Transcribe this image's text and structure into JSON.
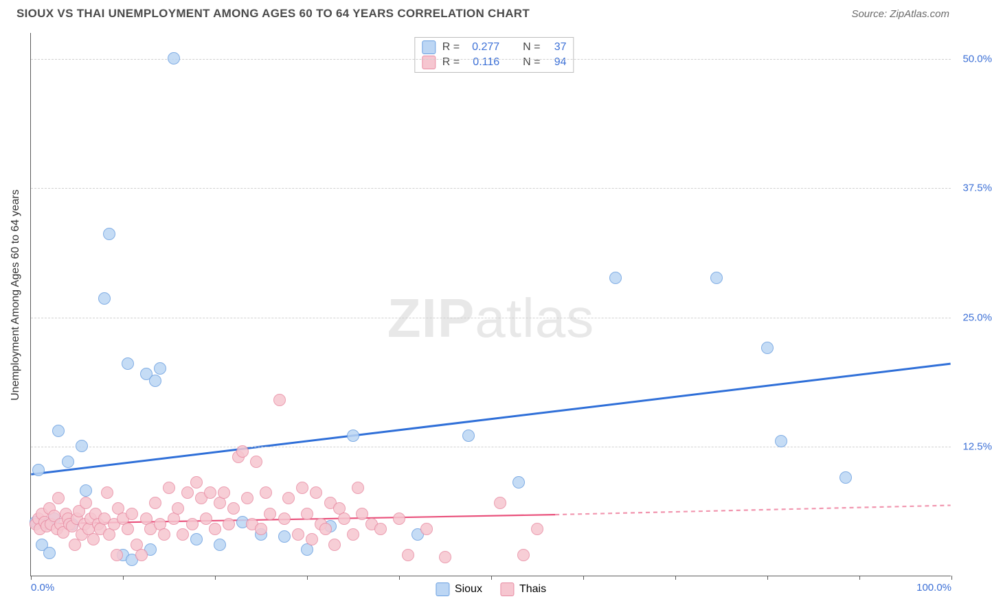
{
  "title": "SIOUX VS THAI UNEMPLOYMENT AMONG AGES 60 TO 64 YEARS CORRELATION CHART",
  "source": "Source: ZipAtlas.com",
  "ylabel": "Unemployment Among Ages 60 to 64 years",
  "watermark": {
    "bold": "ZIP",
    "light": "atlas"
  },
  "chart": {
    "type": "scatter",
    "xlim": [
      0,
      100
    ],
    "ylim": [
      0,
      52.5
    ],
    "x_ticks": [
      0,
      10,
      20,
      30,
      40,
      50,
      60,
      70,
      80,
      90,
      100
    ],
    "x_tick_labels": {
      "0": "0.0%",
      "100": "100.0%"
    },
    "y_gridlines": [
      12.5,
      25.0,
      37.5,
      50.0
    ],
    "y_tick_labels": [
      "12.5%",
      "25.0%",
      "37.5%",
      "50.0%"
    ],
    "background_color": "#ffffff",
    "grid_color": "#cfcfcf",
    "axis_color": "#5a5a5a",
    "point_radius": 9,
    "series": [
      {
        "name": "Sioux",
        "fill": "#bcd6f4",
        "stroke": "#6a9fe0",
        "r_value": "0.277",
        "n_value": "37",
        "trend": {
          "x1": 0,
          "y1": 9.8,
          "x2": 100,
          "y2": 20.5,
          "color": "#2f6fd8",
          "width": 3
        },
        "points": [
          [
            0.5,
            5.2
          ],
          [
            0.8,
            10.2
          ],
          [
            1.2,
            3.0
          ],
          [
            1.5,
            5.0
          ],
          [
            2.0,
            2.2
          ],
          [
            2.5,
            5.5
          ],
          [
            3.0,
            14.0
          ],
          [
            4.0,
            11.0
          ],
          [
            4.5,
            5.0
          ],
          [
            5.5,
            12.5
          ],
          [
            6.0,
            8.2
          ],
          [
            8.0,
            26.8
          ],
          [
            8.5,
            33.0
          ],
          [
            10.0,
            2.0
          ],
          [
            10.5,
            20.5
          ],
          [
            11.0,
            1.5
          ],
          [
            12.5,
            19.5
          ],
          [
            13.0,
            2.5
          ],
          [
            13.5,
            18.8
          ],
          [
            14.0,
            20.0
          ],
          [
            15.5,
            50.0
          ],
          [
            18.0,
            3.5
          ],
          [
            20.5,
            3.0
          ],
          [
            23.0,
            5.2
          ],
          [
            25.0,
            4.0
          ],
          [
            27.5,
            3.8
          ],
          [
            30.0,
            2.5
          ],
          [
            32.5,
            4.8
          ],
          [
            35.0,
            13.5
          ],
          [
            42.0,
            4.0
          ],
          [
            47.5,
            13.5
          ],
          [
            53.0,
            9.0
          ],
          [
            63.5,
            28.8
          ],
          [
            74.5,
            28.8
          ],
          [
            80.0,
            22.0
          ],
          [
            81.5,
            13.0
          ],
          [
            88.5,
            9.5
          ]
        ]
      },
      {
        "name": "Thais",
        "fill": "#f6c6d0",
        "stroke": "#e88ca3",
        "r_value": "0.116",
        "n_value": "94",
        "trend": {
          "x1": 0,
          "y1": 5.0,
          "x2": 57,
          "y2": 5.9,
          "color": "#e94f7a",
          "width": 2.2,
          "dash_x2": 100,
          "dash_y2": 6.8
        },
        "points": [
          [
            0.5,
            5.0
          ],
          [
            0.8,
            5.5
          ],
          [
            1.0,
            4.5
          ],
          [
            1.2,
            6.0
          ],
          [
            1.5,
            5.2
          ],
          [
            1.7,
            4.8
          ],
          [
            2.0,
            6.5
          ],
          [
            2.2,
            5.0
          ],
          [
            2.5,
            5.8
          ],
          [
            2.8,
            4.5
          ],
          [
            3.0,
            7.5
          ],
          [
            3.2,
            5.0
          ],
          [
            3.5,
            4.2
          ],
          [
            3.8,
            6.0
          ],
          [
            4.0,
            5.5
          ],
          [
            4.2,
            5.0
          ],
          [
            4.5,
            4.8
          ],
          [
            4.8,
            3.0
          ],
          [
            5.0,
            5.5
          ],
          [
            5.2,
            6.2
          ],
          [
            5.5,
            4.0
          ],
          [
            5.8,
            5.0
          ],
          [
            6.0,
            7.0
          ],
          [
            6.3,
            4.5
          ],
          [
            6.5,
            5.5
          ],
          [
            6.8,
            3.5
          ],
          [
            7.0,
            6.0
          ],
          [
            7.3,
            5.0
          ],
          [
            7.5,
            4.5
          ],
          [
            8.0,
            5.5
          ],
          [
            8.3,
            8.0
          ],
          [
            8.5,
            4.0
          ],
          [
            9.0,
            5.0
          ],
          [
            9.3,
            2.0
          ],
          [
            9.5,
            6.5
          ],
          [
            10.0,
            5.5
          ],
          [
            10.5,
            4.5
          ],
          [
            11.0,
            6.0
          ],
          [
            11.5,
            3.0
          ],
          [
            12.0,
            2.0
          ],
          [
            12.5,
            5.5
          ],
          [
            13.0,
            4.5
          ],
          [
            13.5,
            7.0
          ],
          [
            14.0,
            5.0
          ],
          [
            14.5,
            4.0
          ],
          [
            15.0,
            8.5
          ],
          [
            15.5,
            5.5
          ],
          [
            16.0,
            6.5
          ],
          [
            16.5,
            4.0
          ],
          [
            17.0,
            8.0
          ],
          [
            17.5,
            5.0
          ],
          [
            18.0,
            9.0
          ],
          [
            18.5,
            7.5
          ],
          [
            19.0,
            5.5
          ],
          [
            19.5,
            8.0
          ],
          [
            20.0,
            4.5
          ],
          [
            20.5,
            7.0
          ],
          [
            21.0,
            8.0
          ],
          [
            21.5,
            5.0
          ],
          [
            22.0,
            6.5
          ],
          [
            22.5,
            11.5
          ],
          [
            23.0,
            12.0
          ],
          [
            23.5,
            7.5
          ],
          [
            24.0,
            5.0
          ],
          [
            24.5,
            11.0
          ],
          [
            25.0,
            4.5
          ],
          [
            25.5,
            8.0
          ],
          [
            26.0,
            6.0
          ],
          [
            27.0,
            17.0
          ],
          [
            27.5,
            5.5
          ],
          [
            28.0,
            7.5
          ],
          [
            29.0,
            4.0
          ],
          [
            29.5,
            8.5
          ],
          [
            30.0,
            6.0
          ],
          [
            30.5,
            3.5
          ],
          [
            31.0,
            8.0
          ],
          [
            31.5,
            5.0
          ],
          [
            32.0,
            4.5
          ],
          [
            32.5,
            7.0
          ],
          [
            33.0,
            3.0
          ],
          [
            33.5,
            6.5
          ],
          [
            34.0,
            5.5
          ],
          [
            35.0,
            4.0
          ],
          [
            35.5,
            8.5
          ],
          [
            36.0,
            6.0
          ],
          [
            37.0,
            5.0
          ],
          [
            38.0,
            4.5
          ],
          [
            40.0,
            5.5
          ],
          [
            41.0,
            2.0
          ],
          [
            43.0,
            4.5
          ],
          [
            45.0,
            1.8
          ],
          [
            51.0,
            7.0
          ],
          [
            53.5,
            2.0
          ],
          [
            55.0,
            4.5
          ]
        ]
      }
    ]
  },
  "legend_top": {
    "rows": [
      {
        "swatch_fill": "#bcd6f4",
        "swatch_stroke": "#6a9fe0",
        "r_label": "R =",
        "r_val": "0.277",
        "n_label": "N =",
        "n_val": "37"
      },
      {
        "swatch_fill": "#f6c6d0",
        "swatch_stroke": "#e88ca3",
        "r_label": "R =",
        "r_val": "0.116",
        "n_label": "N =",
        "n_val": "94"
      }
    ]
  },
  "legend_bottom": [
    {
      "swatch_fill": "#bcd6f4",
      "swatch_stroke": "#6a9fe0",
      "label": "Sioux"
    },
    {
      "swatch_fill": "#f6c6d0",
      "swatch_stroke": "#e88ca3",
      "label": "Thais"
    }
  ]
}
